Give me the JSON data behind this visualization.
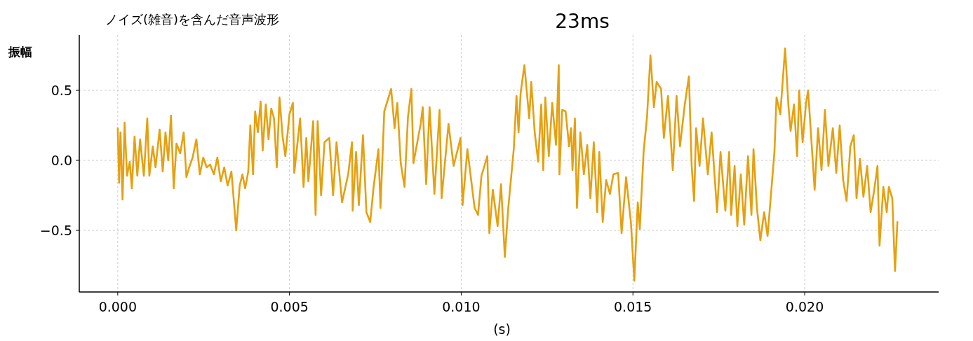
{
  "chart_data": {
    "type": "line",
    "title": "ノイズ(雑音)を含んだ音声波形",
    "subtitle": "23ms",
    "xlabel": "(s)",
    "ylabel": "振幅",
    "x": [
      0,
      4e-05,
      8e-05,
      0.00014,
      0.0002,
      0.00027,
      0.00035,
      0.00041,
      0.00049,
      0.00057,
      0.00065,
      0.00076,
      0.00086,
      0.00092,
      0.00102,
      0.0011,
      0.00122,
      0.00131,
      0.00139,
      0.00147,
      0.00155,
      0.00163,
      0.00171,
      0.00182,
      0.00192,
      0.002,
      0.00208,
      0.00218,
      0.00229,
      0.00239,
      0.00249,
      0.00259,
      0.00269,
      0.0028,
      0.0029,
      0.003,
      0.0031,
      0.0032,
      0.00331,
      0.00345,
      0.00355,
      0.00363,
      0.00371,
      0.0038,
      0.00386,
      0.00394,
      0.004,
      0.00408,
      0.00416,
      0.00422,
      0.00431,
      0.00439,
      0.00447,
      0.00455,
      0.00463,
      0.00471,
      0.0048,
      0.00488,
      0.005,
      0.0051,
      0.00514,
      0.00531,
      0.00541,
      0.00549,
      0.00555,
      0.00569,
      0.00576,
      0.00582,
      0.00592,
      0.00602,
      0.00616,
      0.00627,
      0.00637,
      0.00653,
      0.00671,
      0.00682,
      0.00684,
      0.00694,
      0.00702,
      0.00714,
      0.00724,
      0.00735,
      0.00745,
      0.00759,
      0.00765,
      0.00776,
      0.00796,
      0.00806,
      0.00814,
      0.00824,
      0.00835,
      0.00845,
      0.00855,
      0.00861,
      0.00882,
      0.00888,
      0.00898,
      0.00908,
      0.00922,
      0.00937,
      0.00943,
      0.00963,
      0.00978,
      0.00998,
      0.01004,
      0.01018,
      0.01039,
      0.01049,
      0.01059,
      0.01076,
      0.01082,
      0.01092,
      0.01106,
      0.01116,
      0.01127,
      0.01137,
      0.01153,
      0.01161,
      0.01167,
      0.01173,
      0.01184,
      0.01198,
      0.01204,
      0.01214,
      0.01224,
      0.01233,
      0.01239,
      0.01245,
      0.01255,
      0.01265,
      0.01276,
      0.01284,
      0.01286,
      0.01294,
      0.01304,
      0.01314,
      0.0132,
      0.01324,
      0.01331,
      0.01337,
      0.01347,
      0.01357,
      0.01367,
      0.01376,
      0.01386,
      0.01396,
      0.01402,
      0.01412,
      0.01422,
      0.01433,
      0.01443,
      0.01457,
      0.01467,
      0.0148,
      0.01494,
      0.01504,
      0.01514,
      0.0152,
      0.01531,
      0.01541,
      0.01551,
      0.01561,
      0.01569,
      0.01582,
      0.0159,
      0.01602,
      0.01616,
      0.01627,
      0.01637,
      0.01651,
      0.01663,
      0.01671,
      0.01678,
      0.01684,
      0.01694,
      0.01704,
      0.01718,
      0.01729,
      0.01745,
      0.01755,
      0.01769,
      0.0178,
      0.01786,
      0.01796,
      0.01804,
      0.01814,
      0.01824,
      0.01835,
      0.01845,
      0.01851,
      0.01861,
      0.01871,
      0.01882,
      0.01892,
      0.01902,
      0.01912,
      0.01918,
      0.01929,
      0.01943,
      0.01953,
      0.01959,
      0.01969,
      0.01978,
      0.01984,
      0.01994,
      0.02004,
      0.0201,
      0.02029,
      0.02039,
      0.02049,
      0.02059,
      0.02069,
      0.02082,
      0.02092,
      0.02102,
      0.02112,
      0.02122,
      0.02133,
      0.02143,
      0.02151,
      0.02161,
      0.02171,
      0.02182,
      0.02192,
      0.02202,
      0.02212,
      0.02218,
      0.02229,
      0.02239,
      0.02245,
      0.02255,
      0.02263,
      0.0227
    ],
    "series": [
      {
        "color": "#e6a010",
        "values": [
          0.23,
          -0.16,
          0.2,
          -0.28,
          0.27,
          -0.11,
          -0.01,
          -0.2,
          0.17,
          -0.11,
          0.15,
          -0.11,
          0.3,
          -0.11,
          0.1,
          -0.05,
          0.22,
          -0.08,
          0.2,
          0.0,
          0.32,
          -0.2,
          0.12,
          0.05,
          0.2,
          -0.12,
          -0.05,
          0.02,
          0.15,
          -0.1,
          0.02,
          -0.05,
          -0.03,
          -0.1,
          0.02,
          -0.15,
          -0.05,
          -0.18,
          -0.08,
          -0.5,
          -0.18,
          -0.1,
          -0.2,
          -0.08,
          0.25,
          -0.1,
          0.35,
          0.2,
          0.42,
          0.07,
          0.4,
          0.15,
          0.37,
          0.3,
          -0.05,
          0.45,
          0.17,
          0.03,
          0.33,
          0.41,
          -0.09,
          0.3,
          -0.19,
          0.16,
          -0.15,
          0.28,
          -0.39,
          0.28,
          -0.25,
          0.13,
          0.16,
          -0.25,
          0.13,
          -0.3,
          -0.1,
          0.13,
          -0.36,
          0.06,
          -0.32,
          0.18,
          -0.37,
          -0.44,
          -0.19,
          0.08,
          -0.34,
          0.35,
          0.51,
          0.23,
          0.41,
          -0.02,
          -0.19,
          0.31,
          0.51,
          -0.02,
          0.26,
          0.38,
          -0.17,
          0.38,
          -0.24,
          0.36,
          -0.27,
          0.26,
          -0.04,
          0.16,
          -0.32,
          0.08,
          -0.34,
          -0.39,
          -0.11,
          0.03,
          -0.52,
          -0.21,
          -0.47,
          -0.17,
          -0.69,
          -0.34,
          0.08,
          0.46,
          0.2,
          0.48,
          0.68,
          0.3,
          0.56,
          0.2,
          -0.01,
          0.4,
          -0.07,
          0.45,
          0.03,
          0.41,
          0.11,
          0.68,
          -0.1,
          0.36,
          0.35,
          0.1,
          0.23,
          -0.07,
          0.3,
          -0.34,
          0.2,
          -0.1,
          0.11,
          -0.27,
          0.13,
          -0.37,
          0.06,
          -0.44,
          -0.14,
          -0.24,
          -0.1,
          -0.09,
          -0.52,
          -0.12,
          -0.44,
          -0.86,
          -0.3,
          -0.49,
          0.06,
          0.31,
          0.75,
          0.38,
          0.56,
          0.51,
          0.16,
          0.46,
          -0.07,
          0.46,
          0.1,
          0.4,
          0.6,
          -0.04,
          -0.29,
          0.23,
          -0.04,
          0.3,
          -0.1,
          0.2,
          -0.37,
          0.06,
          -0.36,
          0.06,
          -0.39,
          -0.04,
          -0.47,
          -0.1,
          -0.46,
          0.03,
          -0.39,
          0.08,
          -0.34,
          -0.57,
          -0.37,
          -0.54,
          -0.24,
          0.06,
          0.45,
          0.33,
          0.8,
          0.38,
          0.21,
          0.4,
          0.03,
          0.5,
          0.13,
          0.41,
          0.5,
          -0.21,
          0.23,
          -0.07,
          0.36,
          -0.04,
          0.23,
          -0.09,
          0.25,
          -0.14,
          -0.29,
          0.1,
          0.18,
          -0.27,
          0.01,
          -0.26,
          -0.04,
          -0.37,
          -0.22,
          -0.04,
          -0.61,
          -0.19,
          -0.37,
          -0.19,
          -0.27,
          -0.79,
          -0.44
        ]
      }
    ],
    "xlim": [
      -0.00112,
      0.0239
    ],
    "ylim": [
      -0.94,
      0.895
    ],
    "xticks": [
      {
        "value": 0,
        "label": "0.000"
      },
      {
        "value": 0.005,
        "label": "0.005"
      },
      {
        "value": 0.01,
        "label": "0.010"
      },
      {
        "value": 0.015,
        "label": "0.015"
      },
      {
        "value": 0.02,
        "label": "0.020"
      }
    ],
    "yticks": [
      {
        "value": -0.5,
        "label": "−0.5"
      },
      {
        "value": 0,
        "label": "0.0"
      },
      {
        "value": 0.5,
        "label": "0.5"
      }
    ],
    "grid": true
  }
}
